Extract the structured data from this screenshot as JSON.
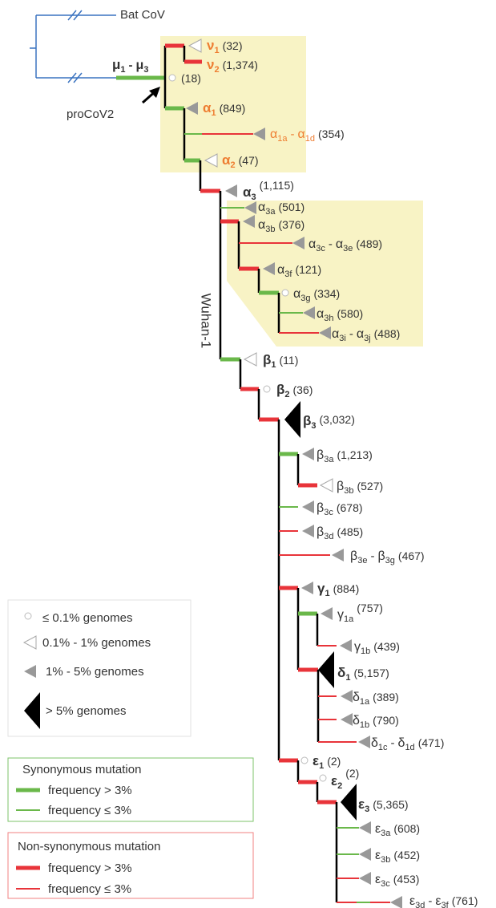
{
  "outgroup": "Bat CoV",
  "ancestor": "proCoV2",
  "trunk_label": "Wuhan-1",
  "root": {
    "name": "μ",
    "sub": "1",
    "sep": "-",
    "to_name": "μ",
    "to_sub": "3",
    "count": "(18)"
  },
  "clades": [
    {
      "name": "ν",
      "sub": "1",
      "count": "(32)"
    },
    {
      "name": "ν",
      "sub": "2",
      "count": "(1,374)"
    },
    {
      "name": "α",
      "sub": "1",
      "count": "(849)"
    },
    {
      "name": "α",
      "sub": "1a",
      "sep": "-",
      "to_name": "α",
      "to_sub": "1d",
      "count": "(354)"
    },
    {
      "name": "α",
      "sub": "2",
      "count": "(47)"
    },
    {
      "name": "α",
      "sub": "3",
      "count": "(1,115)"
    },
    {
      "name": "α",
      "sub": "3a",
      "count": "(501)"
    },
    {
      "name": "α",
      "sub": "3b",
      "count": "(376)"
    },
    {
      "name": "α",
      "sub": "3c",
      "sep": "-",
      "to_name": "α",
      "to_sub": "3e",
      "count": "(489)"
    },
    {
      "name": "α",
      "sub": "3f",
      "count": "(121)"
    },
    {
      "name": "α",
      "sub": "3g",
      "count": "(334)"
    },
    {
      "name": "α",
      "sub": "3h",
      "count": "(580)"
    },
    {
      "name": "α",
      "sub": "3i",
      "sep": "-",
      "to_name": "α",
      "to_sub": "3j",
      "count": "(488)"
    },
    {
      "name": "β",
      "sub": "1",
      "count": "(11)"
    },
    {
      "name": "β",
      "sub": "2",
      "count": "(36)"
    },
    {
      "name": "β",
      "sub": "3",
      "count": "(3,032)"
    },
    {
      "name": "β",
      "sub": "3a",
      "count": "(1,213)"
    },
    {
      "name": "β",
      "sub": "3b",
      "count": "(527)"
    },
    {
      "name": "β",
      "sub": "3c",
      "count": "(678)"
    },
    {
      "name": "β",
      "sub": "3d",
      "count": "(485)"
    },
    {
      "name": "β",
      "sub": "3e",
      "sep": "-",
      "to_name": "β",
      "to_sub": "3g",
      "count": "(467)"
    },
    {
      "name": "γ",
      "sub": "1",
      "count": "(884)"
    },
    {
      "name": "γ",
      "sub": "1a",
      "count": "(757)"
    },
    {
      "name": "γ",
      "sub": "1b",
      "count": "(439)"
    },
    {
      "name": "δ",
      "sub": "1",
      "count": "(5,157)"
    },
    {
      "name": "δ",
      "sub": "1a",
      "count": "(389)"
    },
    {
      "name": "δ",
      "sub": "1b",
      "count": "(790)"
    },
    {
      "name": "δ",
      "sub": "1c",
      "sep": "-",
      "to_name": "δ",
      "to_sub": "1d",
      "count": "(471)"
    },
    {
      "name": "ε",
      "sub": "1",
      "count": "(2)"
    },
    {
      "name": "ε",
      "sub": "2",
      "count": "(2)"
    },
    {
      "name": "ε",
      "sub": "3",
      "count": "(5,365)"
    },
    {
      "name": "ε",
      "sub": "3a",
      "count": "(608)"
    },
    {
      "name": "ε",
      "sub": "3b",
      "count": "(452)"
    },
    {
      "name": "ε",
      "sub": "3c",
      "count": "(453)"
    },
    {
      "name": "ε",
      "sub": "3d",
      "sep": "-",
      "to_name": "ε",
      "to_sub": "3f",
      "count": "(761)"
    }
  ],
  "legend": {
    "prevalence": [
      "≤ 0.1% genomes",
      "0.1% - 1% genomes",
      "1% - 5% genomes",
      "> 5% genomes"
    ],
    "synonymous": {
      "title": "Synonymous mutation",
      "items": [
        "frequency > 3%",
        "frequency ≤ 3%"
      ]
    },
    "non_synonymous": {
      "title": "Non-synonymous mutation",
      "items": [
        "frequency > 3%",
        "frequency ≤ 3%"
      ]
    }
  }
}
